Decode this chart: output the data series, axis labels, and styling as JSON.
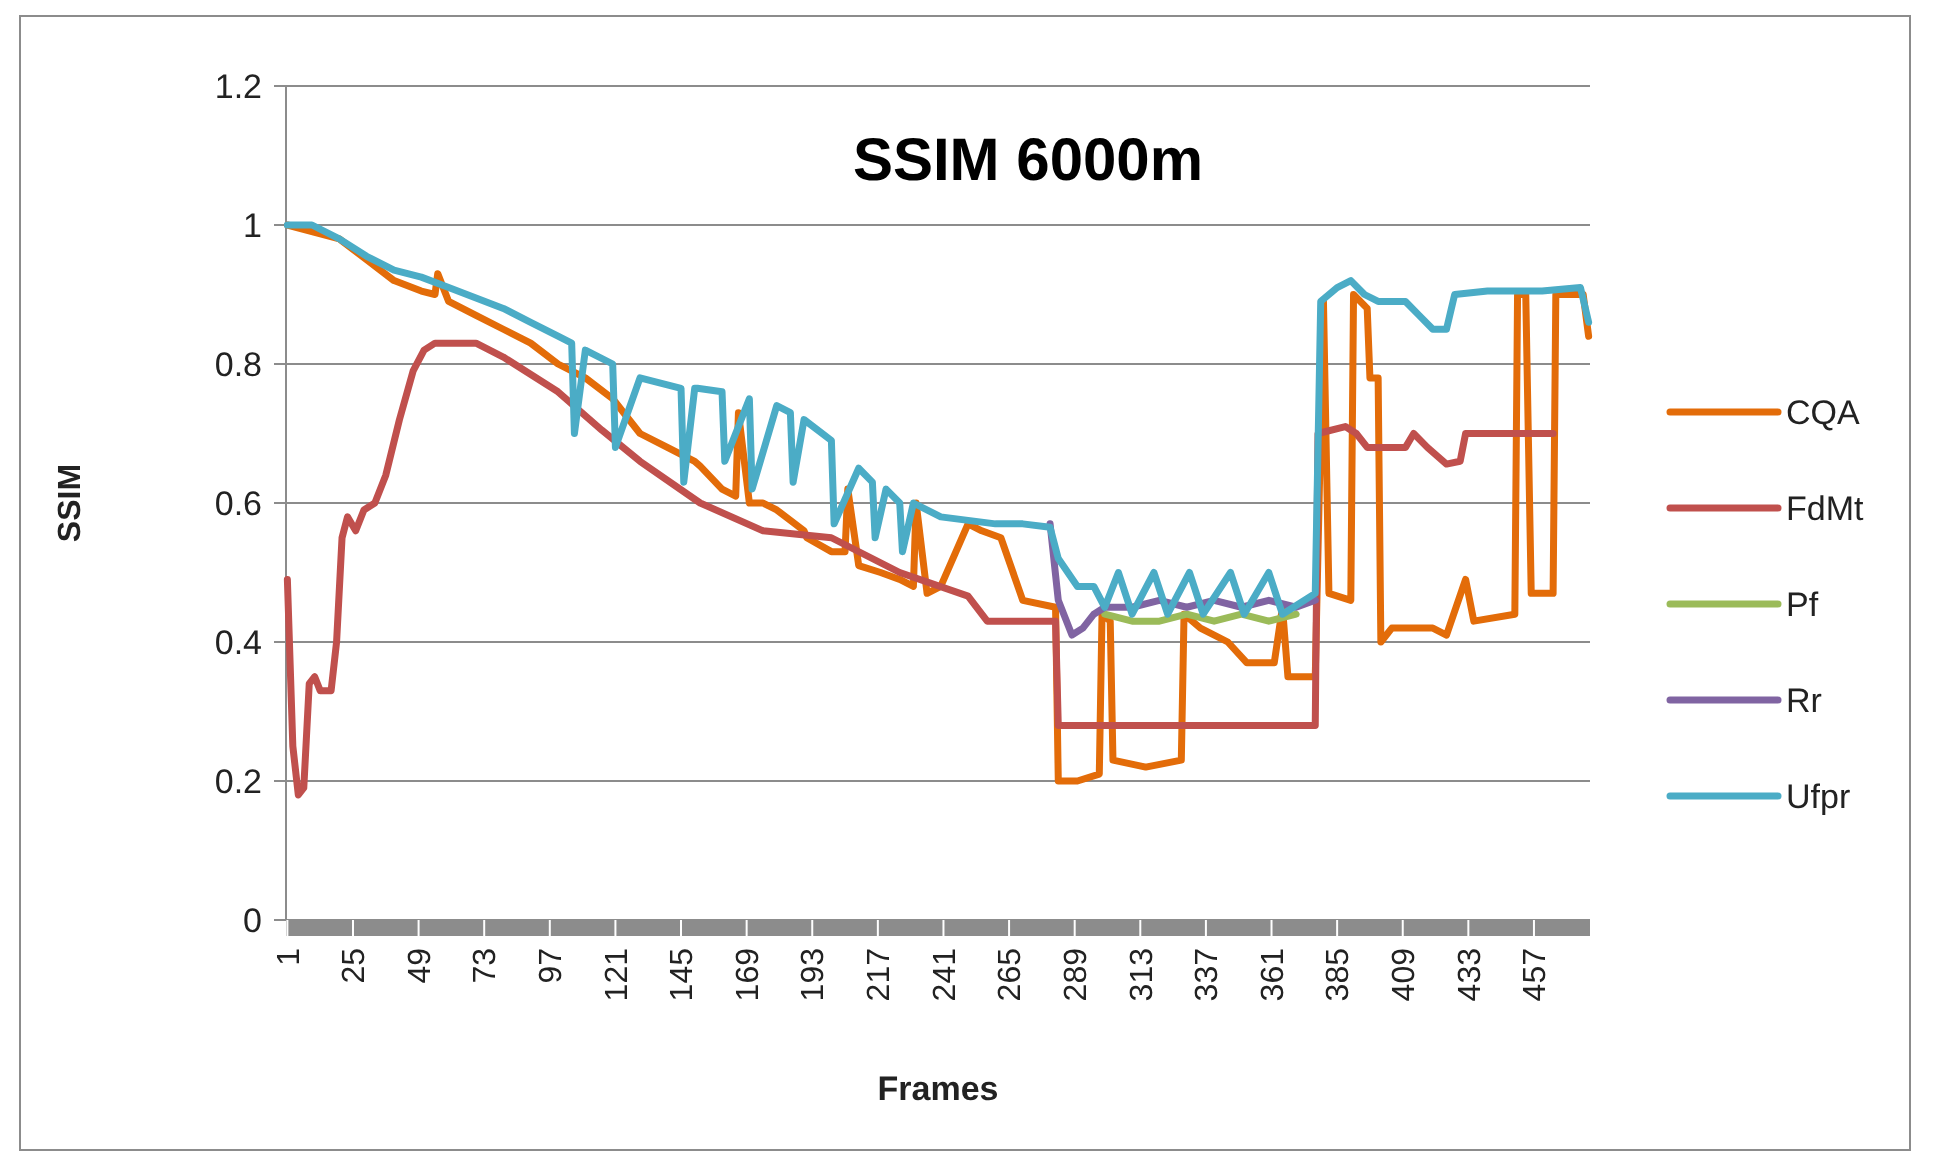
{
  "chart_data": {
    "type": "line",
    "title": "SSIM 6000m",
    "xlabel": "Frames",
    "ylabel": "SSIM",
    "xlim": [
      0.5,
      477.5
    ],
    "xticks": [
      1,
      25,
      49,
      73,
      97,
      121,
      145,
      169,
      193,
      217,
      241,
      265,
      289,
      313,
      337,
      361,
      385,
      409,
      433,
      457
    ],
    "ylim": [
      0,
      1.2
    ],
    "yticks": [
      0,
      0.2,
      0.4,
      0.6,
      0.8,
      1,
      1.2
    ],
    "grid": "y",
    "legend": "right",
    "marker": "none",
    "line_style": "solid",
    "series": [
      {
        "name": "CQA",
        "color": "#e36c09",
        "x": [
          1,
          20,
          30,
          40,
          50,
          55,
          56,
          60,
          70,
          80,
          90,
          100,
          110,
          120,
          130,
          140,
          150,
          152,
          160,
          165,
          166,
          170,
          175,
          180,
          190,
          191,
          200,
          205,
          206,
          210,
          218,
          225,
          230,
          231,
          235,
          240,
          250,
          255,
          262,
          270,
          282,
          283,
          290,
          298,
          299,
          302,
          303,
          315,
          328,
          329,
          335,
          345,
          352,
          362,
          365,
          367,
          377,
          380,
          382,
          390,
          391,
          396,
          397,
          400,
          401,
          405,
          420,
          425,
          432,
          435,
          450,
          451,
          454,
          456,
          464,
          465,
          475,
          477
        ],
        "values": [
          1,
          0.98,
          0.95,
          0.92,
          0.905,
          0.9,
          0.93,
          0.89,
          0.87,
          0.85,
          0.83,
          0.8,
          0.78,
          0.75,
          0.7,
          0.68,
          0.66,
          0.653,
          0.62,
          0.61,
          0.73,
          0.6,
          0.6,
          0.59,
          0.56,
          0.55,
          0.53,
          0.53,
          0.62,
          0.51,
          0.5,
          0.49,
          0.48,
          0.6,
          0.47,
          0.48,
          0.57,
          0.56,
          0.55,
          0.46,
          0.45,
          0.2,
          0.2,
          0.21,
          0.44,
          0.43,
          0.23,
          0.22,
          0.23,
          0.44,
          0.42,
          0.4,
          0.37,
          0.37,
          0.45,
          0.35,
          0.35,
          0.89,
          0.47,
          0.46,
          0.9,
          0.88,
          0.78,
          0.78,
          0.4,
          0.42,
          0.42,
          0.41,
          0.49,
          0.43,
          0.44,
          0.9,
          0.9,
          0.47,
          0.47,
          0.9,
          0.9,
          0.84
        ]
      },
      {
        "name": "FdMt",
        "color": "#c0504d",
        "x": [
          1,
          3,
          5,
          7,
          9,
          11,
          13,
          17,
          19,
          21,
          23,
          26,
          29,
          33,
          37,
          42,
          47,
          51,
          55,
          70,
          80,
          100,
          116,
          130,
          152,
          175,
          200,
          225,
          250,
          257,
          282,
          283,
          377,
          378,
          388,
          392,
          396,
          410,
          413,
          418,
          425,
          430,
          432,
          464
        ],
        "values": [
          0.49,
          0.25,
          0.18,
          0.19,
          0.34,
          0.35,
          0.33,
          0.33,
          0.4,
          0.55,
          0.58,
          0.56,
          0.59,
          0.6,
          0.64,
          0.72,
          0.79,
          0.82,
          0.83,
          0.83,
          0.81,
          0.76,
          0.705,
          0.66,
          0.6,
          0.56,
          0.55,
          0.5,
          0.466,
          0.43,
          0.43,
          0.28,
          0.28,
          0.7,
          0.71,
          0.7,
          0.68,
          0.68,
          0.7,
          0.68,
          0.656,
          0.66,
          0.7,
          0.7
        ]
      },
      {
        "name": "Pf",
        "color": "#9bbb59",
        "x": [
          300,
          310,
          320,
          330,
          340,
          350,
          360,
          370
        ],
        "values": [
          0.44,
          0.43,
          0.43,
          0.44,
          0.43,
          0.44,
          0.43,
          0.44
        ]
      },
      {
        "name": "Rr",
        "color": "#8064a2",
        "x": [
          280,
          283,
          288,
          292,
          296,
          300,
          310,
          320,
          330,
          340,
          350,
          360,
          370,
          377
        ],
        "values": [
          0.57,
          0.46,
          0.41,
          0.42,
          0.44,
          0.45,
          0.45,
          0.46,
          0.45,
          0.46,
          0.45,
          0.46,
          0.45,
          0.46
        ]
      },
      {
        "name": "Ufpr",
        "color": "#4bacc6",
        "x": [
          1,
          10,
          20,
          30,
          40,
          50,
          60,
          70,
          80,
          90,
          100,
          105,
          106,
          110,
          120,
          121,
          130,
          140,
          145,
          146,
          150,
          151,
          160,
          161,
          170,
          171,
          180,
          185,
          186,
          190,
          200,
          201,
          210,
          215,
          216,
          220,
          225,
          226,
          230,
          240,
          250,
          260,
          270,
          280,
          283,
          290,
          296,
          300,
          305,
          310,
          318,
          323,
          331,
          336,
          346,
          351,
          360,
          365,
          377,
          379,
          385,
          390,
          395,
          400,
          410,
          415,
          420,
          425,
          428,
          440,
          460,
          474,
          477
        ],
        "values": [
          1,
          1,
          0.98,
          0.955,
          0.935,
          0.925,
          0.91,
          0.895,
          0.88,
          0.86,
          0.84,
          0.83,
          0.7,
          0.82,
          0.8,
          0.68,
          0.78,
          0.77,
          0.765,
          0.63,
          0.765,
          0.765,
          0.76,
          0.66,
          0.75,
          0.62,
          0.74,
          0.73,
          0.63,
          0.72,
          0.69,
          0.57,
          0.65,
          0.63,
          0.55,
          0.62,
          0.6,
          0.53,
          0.6,
          0.58,
          0.575,
          0.57,
          0.57,
          0.565,
          0.52,
          0.48,
          0.48,
          0.45,
          0.5,
          0.44,
          0.5,
          0.44,
          0.5,
          0.44,
          0.5,
          0.44,
          0.5,
          0.44,
          0.47,
          0.89,
          0.91,
          0.92,
          0.9,
          0.89,
          0.89,
          0.87,
          0.85,
          0.85,
          0.9,
          0.905,
          0.905,
          0.91,
          0.86
        ]
      }
    ]
  }
}
